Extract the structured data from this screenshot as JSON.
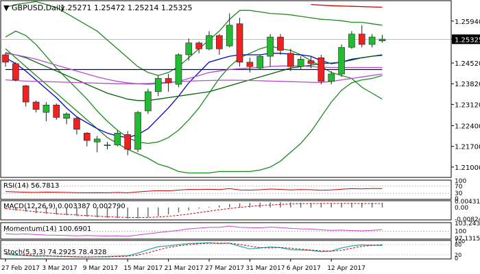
{
  "chart_data": {
    "type": "candlestick",
    "timeframe": "Daily",
    "main": {
      "symbol_label": "GBPUSD,Daily",
      "ohlc_label": "1.25271 1.25472 1.25214 1.25325",
      "last_price_label": "1.25325",
      "last_price": 1.25325,
      "ylim": [
        1.2065,
        1.2663
      ],
      "y_ticks": [
        "1.25940",
        "1.25325",
        "1.24520",
        "1.23820",
        "1.23120",
        "1.22400",
        "1.21700",
        "1.21000"
      ],
      "y_tick_values": [
        1.2594,
        1.25325,
        1.2452,
        1.2382,
        1.2312,
        1.224,
        1.217,
        1.21
      ],
      "candles": [
        {
          "o": 1.248,
          "h": 1.2486,
          "l": 1.244,
          "c": 1.2455
        },
        {
          "o": 1.245,
          "h": 1.2455,
          "l": 1.239,
          "c": 1.2395
        },
        {
          "o": 1.2375,
          "h": 1.2378,
          "l": 1.2305,
          "c": 1.232
        },
        {
          "o": 1.232,
          "h": 1.2325,
          "l": 1.2285,
          "c": 1.2295
        },
        {
          "o": 1.2285,
          "h": 1.232,
          "l": 1.2255,
          "c": 1.231
        },
        {
          "o": 1.231,
          "h": 1.2315,
          "l": 1.226,
          "c": 1.2268
        },
        {
          "o": 1.2265,
          "h": 1.2285,
          "l": 1.2245,
          "c": 1.228
        },
        {
          "o": 1.2265,
          "h": 1.227,
          "l": 1.221,
          "c": 1.2228
        },
        {
          "o": 1.2215,
          "h": 1.2218,
          "l": 1.217,
          "c": 1.219
        },
        {
          "o": 1.2185,
          "h": 1.2205,
          "l": 1.215,
          "c": 1.2195
        },
        {
          "o": 1.2175,
          "h": 1.2185,
          "l": 1.216,
          "c": 1.2175
        },
        {
          "o": 1.2175,
          "h": 1.2225,
          "l": 1.217,
          "c": 1.2215
        },
        {
          "o": 1.221,
          "h": 1.2222,
          "l": 1.214,
          "c": 1.216
        },
        {
          "o": 1.216,
          "h": 1.229,
          "l": 1.215,
          "c": 1.2285
        },
        {
          "o": 1.229,
          "h": 1.2365,
          "l": 1.228,
          "c": 1.2355
        },
        {
          "o": 1.2355,
          "h": 1.241,
          "l": 1.234,
          "c": 1.24
        },
        {
          "o": 1.24,
          "h": 1.2415,
          "l": 1.2355,
          "c": 1.2385
        },
        {
          "o": 1.238,
          "h": 1.2485,
          "l": 1.237,
          "c": 1.248
        },
        {
          "o": 1.248,
          "h": 1.2535,
          "l": 1.246,
          "c": 1.252
        },
        {
          "o": 1.252,
          "h": 1.2525,
          "l": 1.2485,
          "c": 1.25
        },
        {
          "o": 1.25,
          "h": 1.256,
          "l": 1.2495,
          "c": 1.2545
        },
        {
          "o": 1.2545,
          "h": 1.255,
          "l": 1.248,
          "c": 1.25
        },
        {
          "o": 1.251,
          "h": 1.262,
          "l": 1.2505,
          "c": 1.258
        },
        {
          "o": 1.2585,
          "h": 1.2605,
          "l": 1.244,
          "c": 1.2455
        },
        {
          "o": 1.2455,
          "h": 1.247,
          "l": 1.242,
          "c": 1.244
        },
        {
          "o": 1.2435,
          "h": 1.248,
          "l": 1.243,
          "c": 1.2475
        },
        {
          "o": 1.2475,
          "h": 1.255,
          "l": 1.244,
          "c": 1.254
        },
        {
          "o": 1.254,
          "h": 1.255,
          "l": 1.248,
          "c": 1.2495
        },
        {
          "o": 1.2485,
          "h": 1.25,
          "l": 1.2425,
          "c": 1.244
        },
        {
          "o": 1.244,
          "h": 1.2475,
          "l": 1.243,
          "c": 1.2465
        },
        {
          "o": 1.246,
          "h": 1.2475,
          "l": 1.2435,
          "c": 1.245
        },
        {
          "o": 1.247,
          "h": 1.248,
          "l": 1.238,
          "c": 1.239
        },
        {
          "o": 1.239,
          "h": 1.2425,
          "l": 1.238,
          "c": 1.2415
        },
        {
          "o": 1.2415,
          "h": 1.2515,
          "l": 1.2405,
          "c": 1.2505
        },
        {
          "o": 1.2505,
          "h": 1.256,
          "l": 1.25,
          "c": 1.255
        },
        {
          "o": 1.255,
          "h": 1.258,
          "l": 1.2505,
          "c": 1.2515
        },
        {
          "o": 1.2515,
          "h": 1.255,
          "l": 1.2505,
          "c": 1.254
        },
        {
          "o": 1.2527,
          "h": 1.2547,
          "l": 1.2521,
          "c": 1.2533
        }
      ],
      "overlays": [
        {
          "color": "#1c8a1c",
          "values": [
            1.254,
            1.256,
            1.2545,
            1.2515,
            1.2475,
            1.2435,
            1.24,
            1.2365,
            1.233,
            1.229,
            1.2255,
            1.2225,
            1.22,
            1.2185,
            1.218,
            1.2185,
            1.22,
            1.2225,
            1.226,
            1.23,
            1.235,
            1.24,
            1.244,
            1.247,
            1.2485,
            1.25,
            1.251,
            1.25,
            1.2495,
            1.248,
            1.246,
            1.244,
            1.242,
            1.241,
            1.24,
            1.237,
            1.235,
            1.233
          ]
        },
        {
          "color": "#1c8a1c",
          "values": [
            1.264,
            1.265,
            1.2655,
            1.266,
            1.265,
            1.264,
            1.262,
            1.26,
            1.258,
            1.256,
            1.253,
            1.25,
            1.247,
            1.244,
            1.242,
            1.241,
            1.242,
            1.244,
            1.247,
            1.25,
            1.253,
            1.256,
            1.26,
            1.263,
            1.263,
            1.2625,
            1.262,
            1.2618,
            1.2615,
            1.261,
            1.2605,
            1.26,
            1.2598,
            1.2595,
            1.259,
            1.259,
            1.2585,
            1.258
          ]
        },
        {
          "color": "#1c8a1c",
          "values": [
            1.25,
            1.247,
            1.244,
            1.241,
            1.238,
            1.235,
            1.232,
            1.229,
            1.226,
            1.223,
            1.22,
            1.218,
            1.216,
            1.2145,
            1.213,
            1.211,
            1.21,
            1.2085,
            1.208,
            1.208,
            1.208,
            1.2085,
            1.2085,
            1.2085,
            1.2085,
            1.209,
            1.21,
            1.212,
            1.215,
            1.218,
            1.222,
            1.227,
            1.232,
            1.236,
            1.2385,
            1.2395,
            1.24,
            1.241
          ]
        },
        {
          "color": "#0000cc",
          "values": [
            1.247,
            1.245,
            1.2425,
            1.2395,
            1.2365,
            1.2335,
            1.23,
            1.227,
            1.225,
            1.223,
            1.2215,
            1.2205,
            1.22,
            1.221,
            1.223,
            1.2265,
            1.23,
            1.234,
            1.2385,
            1.242,
            1.2455,
            1.2465,
            1.2475,
            1.248,
            1.248,
            1.248,
            1.2485,
            1.2485,
            1.2482,
            1.248,
            1.2475,
            1.246,
            1.245,
            1.2455,
            1.2465,
            1.247,
            1.2475,
            1.248
          ]
        },
        {
          "color": "#006400",
          "values": [
            1.2487,
            1.248,
            1.247,
            1.2455,
            1.244,
            1.2425,
            1.241,
            1.2395,
            1.238,
            1.2365,
            1.235,
            1.234,
            1.233,
            1.2325,
            1.2325,
            1.233,
            1.2335,
            1.234,
            1.2345,
            1.235,
            1.2355,
            1.2365,
            1.2375,
            1.2385,
            1.2395,
            1.2405,
            1.2415,
            1.2425,
            1.2435,
            1.244,
            1.2445,
            1.245,
            1.2452,
            1.2455,
            1.2462,
            1.247,
            1.2475,
            1.2478
          ]
        },
        {
          "color": "#000080",
          "values": [
            1.243,
            1.243,
            1.243,
            1.243,
            1.243,
            1.243,
            1.243,
            1.243,
            1.243,
            1.243,
            1.243,
            1.243,
            1.243,
            1.243,
            1.243,
            1.243,
            1.243,
            1.243,
            1.243,
            1.243,
            1.243,
            1.243,
            1.243,
            1.243,
            1.243,
            1.243,
            1.243,
            1.243,
            1.243,
            1.243,
            1.243,
            1.243,
            1.243,
            1.243,
            1.243,
            1.243,
            1.243,
            1.243
          ]
        },
        {
          "color": "#b44ecc",
          "values": [
            1.2485,
            1.248,
            1.2473,
            1.2465,
            1.2455,
            1.2445,
            1.2435,
            1.2425,
            1.2415,
            1.2405,
            1.2397,
            1.239,
            1.2385,
            1.2382,
            1.238,
            1.2382,
            1.2385,
            1.239,
            1.24,
            1.241,
            1.242,
            1.2425,
            1.243,
            1.2433,
            1.2435,
            1.2437,
            1.244,
            1.2442,
            1.2442,
            1.2442,
            1.244,
            1.2438,
            1.2437,
            1.2437,
            1.2437,
            1.2437,
            1.2437,
            1.2437
          ]
        },
        {
          "color": "#b44ecc",
          "values": [
            1.2395,
            1.2393,
            1.2391,
            1.239,
            1.2389,
            1.2388,
            1.2387,
            1.2386,
            1.2385,
            1.2384,
            1.2383,
            1.2382,
            1.2382,
            1.2382,
            1.2383,
            1.2385,
            1.2387,
            1.2389,
            1.2391,
            1.2392,
            1.2393,
            1.2394,
            1.2394,
            1.2394,
            1.2393,
            1.2392,
            1.2391,
            1.239,
            1.2389,
            1.2388,
            1.2387,
            1.2386,
            1.239,
            1.2395,
            1.24,
            1.2405,
            1.241,
            1.2415
          ]
        },
        {
          "color": "#cc0000",
          "values": [
            null,
            null,
            null,
            null,
            null,
            null,
            null,
            null,
            null,
            null,
            null,
            null,
            null,
            null,
            null,
            null,
            null,
            null,
            null,
            null,
            null,
            null,
            null,
            null,
            null,
            null,
            null,
            null,
            null,
            null,
            1.265,
            1.2648,
            1.2646,
            1.2645,
            1.2644,
            1.2643,
            1.2642,
            1.2641
          ]
        }
      ]
    },
    "rsi": {
      "label": "RSI(14) 56.7813",
      "y_ticks": [
        "100",
        "70",
        "30",
        "0"
      ],
      "levels": [
        70,
        30
      ],
      "values": [
        40,
        38,
        36,
        35,
        37,
        36,
        35,
        34,
        33,
        34,
        33,
        35,
        33,
        38,
        42,
        45,
        44,
        48,
        52,
        51,
        53,
        51,
        56,
        49,
        48,
        50,
        54,
        52,
        49,
        51,
        50,
        47,
        49,
        53,
        56,
        55,
        57,
        56.78
      ]
    },
    "macd": {
      "label": "MACD(12,26,9) 0.003387 0.002790",
      "y_ticks": [
        "0.004316",
        "0.00",
        "-0.008245"
      ],
      "ylim": [
        -0.008245,
        0.004316
      ],
      "histogram": [
        -0.001,
        -0.002,
        -0.003,
        -0.004,
        -0.0045,
        -0.005,
        -0.0055,
        -0.006,
        -0.0065,
        -0.007,
        -0.0073,
        -0.0075,
        -0.0078,
        -0.0076,
        -0.007,
        -0.006,
        -0.0048,
        -0.0035,
        -0.002,
        -0.0008,
        0.0005,
        0.0015,
        0.0025,
        0.003,
        0.0033,
        0.0035,
        0.0037,
        0.0038,
        0.0037,
        0.0035,
        0.0033,
        0.003,
        0.0029,
        0.0031,
        0.0033,
        0.0034,
        0.0034,
        0.0034
      ],
      "signal": [
        -0.0008,
        -0.0015,
        -0.0022,
        -0.003,
        -0.0037,
        -0.0043,
        -0.0048,
        -0.0053,
        -0.0057,
        -0.0061,
        -0.0065,
        -0.0068,
        -0.007,
        -0.0071,
        -0.007,
        -0.0067,
        -0.0062,
        -0.0055,
        -0.0046,
        -0.0036,
        -0.0026,
        -0.0016,
        -0.0007,
        0.0001,
        0.0008,
        0.0013,
        0.0018,
        0.0022,
        0.0025,
        0.0027,
        0.0028,
        0.0029,
        0.0029,
        0.0029,
        0.0029,
        0.0028,
        0.0028,
        0.0028
      ]
    },
    "momentum": {
      "label": "Momentum(14) 100.6901",
      "y_ticks": [
        "103.2437",
        "100",
        "97.1315"
      ],
      "ylim": [
        97.1315,
        103.2437
      ],
      "level": 100,
      "values": [
        99.0,
        98.8,
        98.9,
        98.7,
        98.5,
        98.4,
        98.3,
        98.2,
        98.3,
        98.2,
        98.1,
        98.2,
        98.0,
        98.5,
        99.0,
        99.5,
        99.9,
        100.4,
        101.0,
        101.3,
        101.6,
        101.6,
        102.1,
        101.6,
        101.5,
        101.4,
        101.7,
        101.5,
        101.2,
        101.0,
        100.9,
        100.6,
        100.4,
        100.5,
        100.3,
        100.2,
        100.4,
        100.69
      ]
    },
    "stoch": {
      "label": "Stoch(5,3,3) 74.2925 78.4328",
      "y_ticks": [
        "100",
        "80",
        "20",
        "0"
      ],
      "levels": [
        80,
        20
      ],
      "k": [
        22,
        18,
        15,
        12,
        14,
        11,
        10,
        8,
        7,
        9,
        10,
        13,
        15,
        30,
        50,
        68,
        72,
        80,
        86,
        88,
        90,
        86,
        88,
        70,
        55,
        60,
        66,
        62,
        50,
        48,
        46,
        38,
        42,
        60,
        72,
        78,
        76,
        74.29
      ],
      "d": [
        28,
        22,
        18,
        15,
        13,
        12,
        11,
        9,
        8,
        8,
        8,
        10,
        12,
        19,
        32,
        49,
        63,
        73,
        79,
        85,
        88,
        88,
        88,
        81,
        71,
        62,
        60,
        63,
        59,
        53,
        48,
        44,
        42,
        47,
        58,
        70,
        75,
        78.43
      ]
    },
    "x_labels": [
      {
        "label": "27 Feb 2017",
        "index": 0
      },
      {
        "label": "3 Mar 2017",
        "index": 4
      },
      {
        "label": "9 Mar 2017",
        "index": 8
      },
      {
        "label": "15 Mar 2017",
        "index": 12
      },
      {
        "label": "21 Mar 2017",
        "index": 16
      },
      {
        "label": "27 Mar 2017",
        "index": 20
      },
      {
        "label": "31 Mar 2017",
        "index": 24
      },
      {
        "label": "6 Apr 2017",
        "index": 28
      },
      {
        "label": "12 Apr 2017",
        "index": 32
      }
    ],
    "colors": {
      "up_candle": "#22bb33",
      "down_candle": "#ee2222",
      "candle_border": "#1e1e1e",
      "grid": "#999999",
      "indicator_line": "#c80000",
      "momentum_line": "#d040d0",
      "stoch_k": "#2aa8a8",
      "stoch_d": "#c00000",
      "last_price_box": "#000000"
    }
  }
}
